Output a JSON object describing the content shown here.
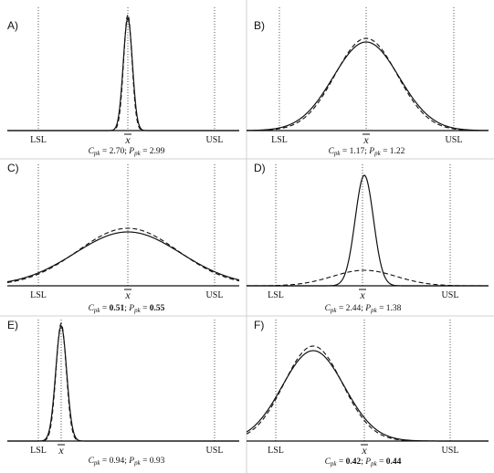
{
  "figure": {
    "marker_labels": {
      "lsl": "LSL",
      "mean": "x",
      "usl": "USL"
    },
    "panels": [
      {
        "letter": "A)",
        "cpk": "2.70",
        "ppk": "2.99",
        "bold": false
      },
      {
        "letter": "B)",
        "cpk": "1.17",
        "ppk": "1.22",
        "bold": false
      },
      {
        "letter": "C)",
        "cpk": "0.51",
        "ppk": "0.55",
        "bold": true
      },
      {
        "letter": "D)",
        "cpk": "2.44",
        "ppk": "1.38",
        "bold": false
      },
      {
        "letter": "E)",
        "cpk": "0.94",
        "ppk": "0.93",
        "bold": false
      },
      {
        "letter": "F)",
        "cpk": "0.42",
        "ppk": "0.44",
        "bold": true
      }
    ]
  },
  "chart_data": {
    "type": "line",
    "x_axis": {
      "markers": [
        "LSL",
        "x",
        "USL"
      ]
    },
    "series": [
      {
        "panel": "A",
        "curves": [
          "solid",
          "dashed"
        ],
        "Cpk": 2.7,
        "Ppk": 2.99
      },
      {
        "panel": "B",
        "curves": [
          "solid",
          "dashed"
        ],
        "Cpk": 1.17,
        "Ppk": 1.22
      },
      {
        "panel": "C",
        "curves": [
          "solid",
          "dashed"
        ],
        "Cpk": 0.51,
        "Ppk": 0.55
      },
      {
        "panel": "D",
        "curves": [
          "solid",
          "dashed"
        ],
        "Cpk": 2.44,
        "Ppk": 1.38
      },
      {
        "panel": "E",
        "curves": [
          "solid",
          "dashed"
        ],
        "Cpk": 0.94,
        "Ppk": 0.93
      },
      {
        "panel": "F",
        "curves": [
          "solid",
          "dashed"
        ],
        "Cpk": 0.42,
        "Ppk": 0.44
      }
    ],
    "grid": false
  }
}
